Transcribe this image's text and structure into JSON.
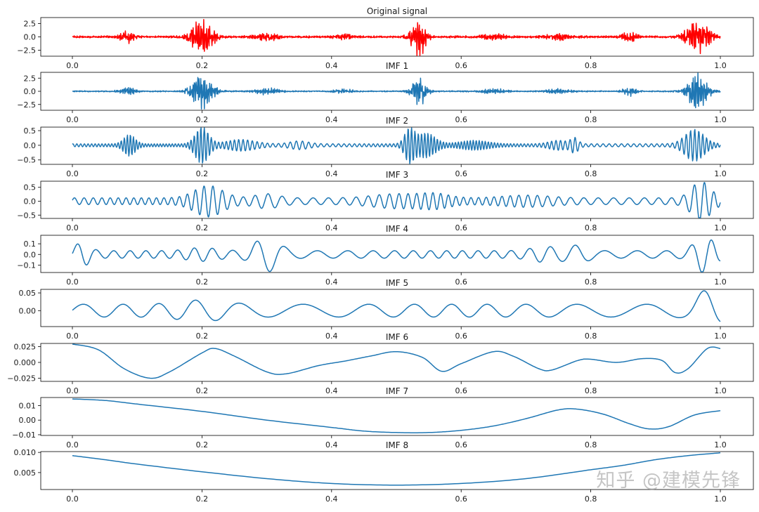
{
  "watermark": "知乎 @建模先锋",
  "chart_data": [
    {
      "type": "line",
      "title": "Original signal",
      "color": "#ff0000",
      "ylim": [
        -3.6,
        3.6
      ],
      "yticks": [
        -2.5,
        0.0,
        2.5
      ],
      "ytick_labels": [
        "−2.5",
        "0.0",
        "2.5"
      ],
      "xlim": [
        0.0,
        1.0
      ],
      "xticks": [
        0.0,
        0.2,
        0.4,
        0.6,
        0.8,
        1.0
      ],
      "xtick_labels": [
        "0.0",
        "0.2",
        "0.4",
        "0.6",
        "0.8",
        "1.0"
      ],
      "signal": {
        "kind": "noise",
        "base": 0.2,
        "bursts": [
          [
            0.085,
            0.012,
            1.1
          ],
          [
            0.2,
            0.018,
            3.3
          ],
          [
            0.3,
            0.02,
            0.6
          ],
          [
            0.42,
            0.015,
            0.45
          ],
          [
            0.53,
            0.015,
            0.4
          ],
          [
            0.535,
            0.012,
            3.1
          ],
          [
            0.65,
            0.02,
            0.5
          ],
          [
            0.75,
            0.02,
            0.45
          ],
          [
            0.86,
            0.012,
            0.9
          ],
          [
            0.965,
            0.018,
            3.3
          ]
        ]
      }
    },
    {
      "type": "line",
      "title": "IMF 1",
      "color": "#1f77b4",
      "ylim": [
        -3.6,
        3.6
      ],
      "yticks": [
        -2.5,
        0.0,
        2.5
      ],
      "ytick_labels": [
        "−2.5",
        "0.0",
        "2.5"
      ],
      "xlim": [
        0.0,
        1.0
      ],
      "xticks": [
        0.0,
        0.2,
        0.4,
        0.6,
        0.8,
        1.0
      ],
      "xtick_labels": [
        "0.0",
        "0.2",
        "0.4",
        "0.6",
        "0.8",
        "1.0"
      ],
      "signal": {
        "kind": "noise",
        "base": 0.12,
        "bursts": [
          [
            0.085,
            0.012,
            1.0
          ],
          [
            0.2,
            0.018,
            3.2
          ],
          [
            0.3,
            0.02,
            0.55
          ],
          [
            0.42,
            0.015,
            0.4
          ],
          [
            0.535,
            0.012,
            3.0
          ],
          [
            0.65,
            0.02,
            0.45
          ],
          [
            0.75,
            0.02,
            0.4
          ],
          [
            0.86,
            0.012,
            0.8
          ],
          [
            0.965,
            0.018,
            3.2
          ]
        ]
      }
    },
    {
      "type": "line",
      "title": "IMF 2",
      "color": "#1f77b4",
      "ylim": [
        -0.65,
        0.62
      ],
      "yticks": [
        -0.5,
        0.0,
        0.5
      ],
      "ytick_labels": [
        "−0.5",
        "0.0",
        "0.5"
      ],
      "xlim": [
        0.0,
        1.0
      ],
      "xticks": [
        0.0,
        0.2,
        0.4,
        0.6,
        0.8,
        1.0
      ],
      "xtick_labels": [
        "0.0",
        "0.2",
        "0.4",
        "0.6",
        "0.8",
        "1.0"
      ],
      "signal": {
        "kind": "osc",
        "freq": 190,
        "base": 0.05,
        "bursts": [
          [
            0.088,
            0.012,
            0.32
          ],
          [
            0.2,
            0.014,
            0.58
          ],
          [
            0.26,
            0.03,
            0.15
          ],
          [
            0.35,
            0.02,
            0.1
          ],
          [
            0.52,
            0.01,
            0.5
          ],
          [
            0.545,
            0.02,
            0.38
          ],
          [
            0.62,
            0.03,
            0.12
          ],
          [
            0.75,
            0.02,
            0.12
          ],
          [
            0.775,
            0.008,
            0.2
          ],
          [
            0.96,
            0.02,
            0.5
          ]
        ]
      }
    },
    {
      "type": "line",
      "title": "IMF 3",
      "color": "#1f77b4",
      "ylim": [
        -0.62,
        0.72
      ],
      "yticks": [
        -0.5,
        0.0,
        0.5
      ],
      "ytick_labels": [
        "−0.5",
        "0.0",
        "0.5"
      ],
      "xlim": [
        0.0,
        1.0
      ],
      "xticks": [
        0.0,
        0.2,
        0.4,
        0.6,
        0.8,
        1.0
      ],
      "xtick_labels": [
        "0.0",
        "0.2",
        "0.4",
        "0.6",
        "0.8",
        "1.0"
      ],
      "signal": {
        "kind": "osc",
        "freq": 75,
        "base": 0.12,
        "bursts": [
          [
            0.21,
            0.03,
            0.45
          ],
          [
            0.3,
            0.025,
            0.15
          ],
          [
            0.5,
            0.05,
            0.15
          ],
          [
            0.56,
            0.03,
            0.15
          ],
          [
            0.7,
            0.05,
            0.1
          ],
          [
            0.97,
            0.02,
            0.6
          ]
        ]
      }
    },
    {
      "type": "line",
      "title": "IMF 4",
      "color": "#1f77b4",
      "ylim": [
        -0.17,
        0.18
      ],
      "yticks": [
        -0.1,
        0.0,
        0.1
      ],
      "ytick_labels": [
        "−0.1",
        "0.0",
        "0.1"
      ],
      "xlim": [
        0.0,
        1.0
      ],
      "xticks": [
        0.0,
        0.2,
        0.4,
        0.6,
        0.8,
        1.0
      ],
      "xtick_labels": [
        "0.0",
        "0.2",
        "0.4",
        "0.6",
        "0.8",
        "1.0"
      ],
      "signal": {
        "kind": "osc",
        "freq": 36,
        "base": 0.035,
        "bursts": [
          [
            0.015,
            0.015,
            0.08
          ],
          [
            0.3,
            0.025,
            0.13
          ],
          [
            0.2,
            0.03,
            0.03
          ],
          [
            0.73,
            0.03,
            0.04
          ],
          [
            0.78,
            0.02,
            0.05
          ],
          [
            0.975,
            0.02,
            0.14
          ]
        ]
      }
    },
    {
      "type": "line",
      "title": "IMF 5",
      "color": "#1f77b4",
      "ylim": [
        -0.045,
        0.06
      ],
      "yticks": [
        0.0,
        0.05
      ],
      "ytick_labels": [
        "0.00",
        "0.05"
      ],
      "xlim": [
        0.0,
        1.0
      ],
      "xticks": [
        0.0,
        0.2,
        0.4,
        0.6,
        0.8,
        1.0
      ],
      "xtick_labels": [
        "0.0",
        "0.2",
        "0.4",
        "0.6",
        "0.8",
        "1.0"
      ],
      "signal": {
        "kind": "osc",
        "freq": 16,
        "base": 0.018,
        "bursts": [
          [
            0.2,
            0.05,
            0.012
          ],
          [
            0.98,
            0.025,
            0.04
          ]
        ]
      }
    },
    {
      "type": "line",
      "title": "IMF 6",
      "color": "#1f77b4",
      "ylim": [
        -0.03,
        0.03
      ],
      "yticks": [
        -0.025,
        0.0,
        0.025
      ],
      "ytick_labels": [
        "−0.025",
        "0.000",
        "0.025"
      ],
      "xlim": [
        0.0,
        1.0
      ],
      "xticks": [
        0.0,
        0.2,
        0.4,
        0.6,
        0.8,
        1.0
      ],
      "xtick_labels": [
        "0.0",
        "0.2",
        "0.4",
        "0.6",
        "0.8",
        "1.0"
      ],
      "points": [
        [
          0.0,
          0.029
        ],
        [
          0.04,
          0.02
        ],
        [
          0.08,
          -0.01
        ],
        [
          0.12,
          -0.025
        ],
        [
          0.15,
          -0.015
        ],
        [
          0.2,
          0.015
        ],
        [
          0.22,
          0.022
        ],
        [
          0.25,
          0.01
        ],
        [
          0.3,
          -0.015
        ],
        [
          0.33,
          -0.018
        ],
        [
          0.38,
          -0.005
        ],
        [
          0.42,
          0.002
        ],
        [
          0.46,
          0.01
        ],
        [
          0.5,
          0.017
        ],
        [
          0.54,
          0.008
        ],
        [
          0.57,
          -0.014
        ],
        [
          0.6,
          -0.002
        ],
        [
          0.65,
          0.017
        ],
        [
          0.68,
          0.01
        ],
        [
          0.72,
          -0.01
        ],
        [
          0.74,
          -0.012
        ],
        [
          0.78,
          0.003
        ],
        [
          0.8,
          0.005
        ],
        [
          0.84,
          0.0
        ],
        [
          0.88,
          0.006
        ],
        [
          0.91,
          0.003
        ],
        [
          0.93,
          -0.016
        ],
        [
          0.95,
          -0.01
        ],
        [
          0.98,
          0.022
        ],
        [
          1.0,
          0.022
        ]
      ]
    },
    {
      "type": "line",
      "title": "IMF 7",
      "color": "#1f77b4",
      "ylim": [
        -0.0105,
        0.0155
      ],
      "yticks": [
        -0.01,
        0.0,
        0.01
      ],
      "ytick_labels": [
        "−0.01",
        "0.00",
        "0.01"
      ],
      "xlim": [
        0.0,
        1.0
      ],
      "xticks": [
        0.0,
        0.2,
        0.4,
        0.6,
        0.8,
        1.0
      ],
      "xtick_labels": [
        "0.0",
        "0.2",
        "0.4",
        "0.6",
        "0.8",
        "1.0"
      ],
      "points": [
        [
          0.0,
          0.0145
        ],
        [
          0.05,
          0.0135
        ],
        [
          0.1,
          0.011
        ],
        [
          0.2,
          0.006
        ],
        [
          0.3,
          0.0
        ],
        [
          0.4,
          -0.005
        ],
        [
          0.45,
          -0.0075
        ],
        [
          0.5,
          -0.0085
        ],
        [
          0.55,
          -0.0085
        ],
        [
          0.6,
          -0.007
        ],
        [
          0.65,
          -0.004
        ],
        [
          0.7,
          0.001
        ],
        [
          0.75,
          0.007
        ],
        [
          0.78,
          0.0075
        ],
        [
          0.82,
          0.004
        ],
        [
          0.86,
          -0.0025
        ],
        [
          0.89,
          -0.006
        ],
        [
          0.92,
          -0.0045
        ],
        [
          0.96,
          0.0035
        ],
        [
          1.0,
          0.0065
        ]
      ]
    },
    {
      "type": "line",
      "title": "IMF 8",
      "color": "#1f77b4",
      "ylim": [
        0.0008,
        0.0102
      ],
      "yticks": [
        0.005,
        0.01
      ],
      "ytick_labels": [
        "0.005",
        "0.010"
      ],
      "xlim": [
        0.0,
        1.0
      ],
      "xticks": [
        0.0,
        0.2,
        0.4,
        0.6,
        0.8,
        1.0
      ],
      "xtick_labels": [
        "0.0",
        "0.2",
        "0.4",
        "0.6",
        "0.8",
        "1.0"
      ],
      "points": [
        [
          0.0,
          0.0092
        ],
        [
          0.05,
          0.0082
        ],
        [
          0.1,
          0.0071
        ],
        [
          0.2,
          0.0052
        ],
        [
          0.3,
          0.0035
        ],
        [
          0.4,
          0.0023
        ],
        [
          0.5,
          0.0019
        ],
        [
          0.6,
          0.0023
        ],
        [
          0.7,
          0.0035
        ],
        [
          0.8,
          0.0057
        ],
        [
          0.85,
          0.0068
        ],
        [
          0.9,
          0.0082
        ],
        [
          0.95,
          0.0092
        ],
        [
          1.0,
          0.0099
        ]
      ]
    }
  ]
}
